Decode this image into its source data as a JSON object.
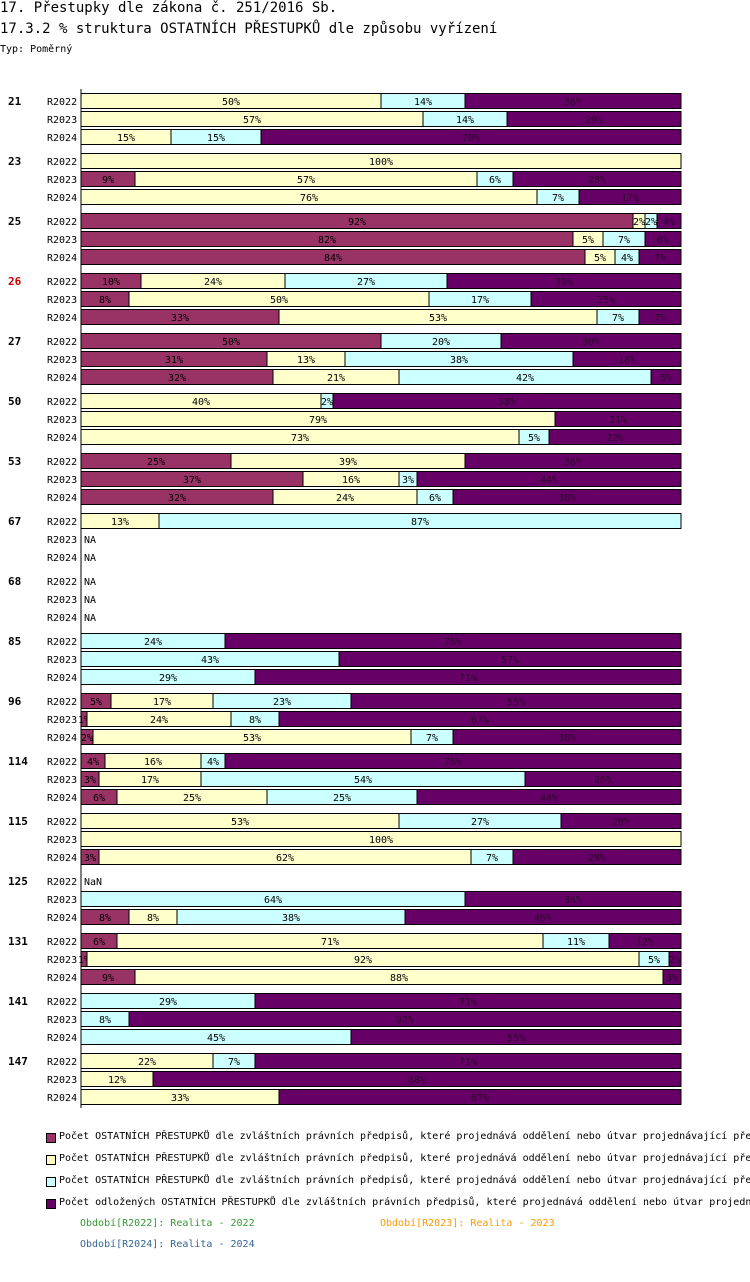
{
  "title": "17. Přestupky dle zákona č. 251/2016 Sb.",
  "subtitle": "17.3.2 % struktura OSTATNÍCH PŘESTUPKŮ dle způsobu vyřízení",
  "type_label": "Typ: Poměrný",
  "chart_data": {
    "type": "bar",
    "orientation": "horizontal-stacked-percent",
    "series": [
      {
        "name": "Počet OSTATNÍCH PŘESTUPKŮ dle zvláštních právních předpisů, které projednává oddělení nebo útvar projednávající pře",
        "color": "#993366"
      },
      {
        "name": "Počet OSTATNÍCH PŘESTUPKŮ dle zvláštních právních předpisů, které projednává oddělení nebo útvar projednávající pře",
        "color": "#ffffcc"
      },
      {
        "name": "Počet OSTATNÍCH PŘESTUPKŮ dle zvláštních právních předpisů, které projednává oddělení nebo útvar projednávající pře",
        "color": "#ccffff"
      },
      {
        "name": "Počet odložených OSTATNÍCH PŘESTUPKŮ dle zvláštních právních předpisů, které projednává oddělení nebo útvar projedn",
        "color": "#660066"
      }
    ],
    "groups": [
      {
        "label": "21",
        "highlight": false,
        "rows": [
          {
            "period": "R2022",
            "values": [
              0,
              50,
              14,
              36
            ]
          },
          {
            "period": "R2023",
            "values": [
              0,
              57,
              14,
              29
            ]
          },
          {
            "period": "R2024",
            "values": [
              0,
              15,
              15,
              70
            ]
          }
        ]
      },
      {
        "label": "23",
        "highlight": false,
        "rows": [
          {
            "period": "R2022",
            "values": [
              0,
              100,
              0,
              0
            ]
          },
          {
            "period": "R2023",
            "values": [
              9,
              57,
              6,
              28
            ]
          },
          {
            "period": "R2024",
            "values": [
              0,
              76,
              7,
              17
            ]
          }
        ]
      },
      {
        "label": "25",
        "highlight": false,
        "rows": [
          {
            "period": "R2022",
            "values": [
              92,
              2,
              2,
              4
            ]
          },
          {
            "period": "R2023",
            "values": [
              82,
              5,
              7,
              6
            ]
          },
          {
            "period": "R2024",
            "values": [
              84,
              5,
              4,
              7
            ]
          }
        ]
      },
      {
        "label": "26",
        "highlight": true,
        "rows": [
          {
            "period": "R2022",
            "values": [
              10,
              24,
              27,
              39
            ]
          },
          {
            "period": "R2023",
            "values": [
              8,
              50,
              17,
              25
            ]
          },
          {
            "period": "R2024",
            "values": [
              33,
              53,
              7,
              7
            ]
          }
        ]
      },
      {
        "label": "27",
        "highlight": false,
        "rows": [
          {
            "period": "R2022",
            "values": [
              50,
              0,
              20,
              30
            ]
          },
          {
            "period": "R2023",
            "values": [
              31,
              13,
              38,
              18
            ]
          },
          {
            "period": "R2024",
            "values": [
              32,
              21,
              42,
              5
            ]
          }
        ]
      },
      {
        "label": "50",
        "highlight": false,
        "rows": [
          {
            "period": "R2022",
            "values": [
              0,
              40,
              2,
              58
            ]
          },
          {
            "period": "R2023",
            "values": [
              0,
              79,
              0,
              21
            ]
          },
          {
            "period": "R2024",
            "values": [
              0,
              73,
              5,
              22
            ]
          }
        ]
      },
      {
        "label": "53",
        "highlight": false,
        "rows": [
          {
            "period": "R2022",
            "values": [
              25,
              39,
              0,
              36
            ]
          },
          {
            "period": "R2023",
            "values": [
              37,
              16,
              3,
              44
            ]
          },
          {
            "period": "R2024",
            "values": [
              32,
              24,
              6,
              38
            ]
          }
        ]
      },
      {
        "label": "67",
        "highlight": false,
        "rows": [
          {
            "period": "R2022",
            "values": [
              0,
              13,
              87,
              0
            ]
          },
          {
            "period": "R2023",
            "values": null,
            "text": "NA"
          },
          {
            "period": "R2024",
            "values": null,
            "text": "NA"
          }
        ]
      },
      {
        "label": "68",
        "highlight": false,
        "rows": [
          {
            "period": "R2022",
            "values": null,
            "text": "NA"
          },
          {
            "period": "R2023",
            "values": null,
            "text": "NA"
          },
          {
            "period": "R2024",
            "values": null,
            "text": "NA"
          }
        ]
      },
      {
        "label": "85",
        "highlight": false,
        "rows": [
          {
            "period": "R2022",
            "values": [
              0,
              0,
              24,
              76
            ]
          },
          {
            "period": "R2023",
            "values": [
              0,
              0,
              43,
              57
            ]
          },
          {
            "period": "R2024",
            "values": [
              0,
              0,
              29,
              71
            ]
          }
        ]
      },
      {
        "label": "96",
        "highlight": false,
        "rows": [
          {
            "period": "R2022",
            "values": [
              5,
              17,
              23,
              55
            ]
          },
          {
            "period": "R2023",
            "values": [
              1,
              24,
              8,
              67
            ]
          },
          {
            "period": "R2024",
            "values": [
              2,
              53,
              7,
              38
            ]
          }
        ]
      },
      {
        "label": "114",
        "highlight": false,
        "rows": [
          {
            "period": "R2022",
            "values": [
              4,
              16,
              4,
              76
            ]
          },
          {
            "period": "R2023",
            "values": [
              3,
              17,
              54,
              26
            ]
          },
          {
            "period": "R2024",
            "values": [
              6,
              25,
              25,
              44
            ]
          }
        ]
      },
      {
        "label": "115",
        "highlight": false,
        "rows": [
          {
            "period": "R2022",
            "values": [
              0,
              53,
              27,
              20
            ]
          },
          {
            "period": "R2023",
            "values": [
              0,
              100,
              0,
              0
            ]
          },
          {
            "period": "R2024",
            "values": [
              3,
              62,
              7,
              28
            ]
          }
        ]
      },
      {
        "label": "125",
        "highlight": false,
        "rows": [
          {
            "period": "R2022",
            "values": null,
            "text": "NaN"
          },
          {
            "period": "R2023",
            "values": [
              0,
              0,
              64,
              36
            ]
          },
          {
            "period": "R2024",
            "values": [
              8,
              8,
              38,
              46
            ]
          }
        ]
      },
      {
        "label": "131",
        "highlight": false,
        "rows": [
          {
            "period": "R2022",
            "values": [
              6,
              71,
              11,
              12
            ]
          },
          {
            "period": "R2023",
            "values": [
              1,
              92,
              5,
              2
            ]
          },
          {
            "period": "R2024",
            "values": [
              9,
              88,
              0,
              3
            ]
          }
        ]
      },
      {
        "label": "141",
        "highlight": false,
        "rows": [
          {
            "period": "R2022",
            "values": [
              0,
              0,
              29,
              71
            ]
          },
          {
            "period": "R2023",
            "values": [
              0,
              0,
              8,
              92
            ]
          },
          {
            "period": "R2024",
            "values": [
              0,
              0,
              45,
              55
            ]
          }
        ]
      },
      {
        "label": "147",
        "highlight": false,
        "rows": [
          {
            "period": "R2022",
            "values": [
              0,
              22,
              7,
              71
            ]
          },
          {
            "period": "R2023",
            "values": [
              0,
              12,
              0,
              88
            ]
          },
          {
            "period": "R2024",
            "values": [
              0,
              33,
              0,
              67
            ]
          }
        ]
      }
    ]
  },
  "periods": [
    {
      "label": "Období[R2022]: Realita - 2022",
      "color": "#339933"
    },
    {
      "label": "Období[R2023]: Realita - 2023",
      "color": "#ff9900"
    },
    {
      "label": "Období[R2024]: Realita - 2024",
      "color": "#336699"
    }
  ],
  "highlight_color": "#cc0000"
}
